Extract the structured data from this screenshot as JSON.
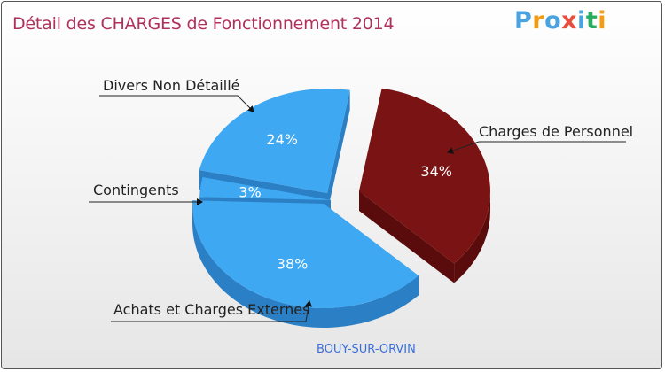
{
  "header": {
    "title": "Détail des CHARGES de Fonctionnement 2014",
    "logo": "Proxiti",
    "commune": "BOUY-SUR-ORVIN"
  },
  "colors": {
    "title": "#b0305c",
    "blue": "#3ea8f2",
    "blue_side": "#2b7fc5",
    "red": "#7a1414",
    "red_side": "#5a0b0b",
    "logo": [
      "#4aa3df",
      "#f39c12",
      "#4aa3df",
      "#e74c3c",
      "#4aa3df",
      "#27ae60",
      "#f39c12"
    ]
  },
  "chart_data": {
    "type": "pie",
    "title": "Détail des CHARGES de Fonctionnement 2014",
    "subtitle": "BOUY-SUR-ORVIN",
    "unit": "%",
    "slices": [
      {
        "label": "Charges de Personnel",
        "value": 34,
        "value_label": "34%"
      },
      {
        "label": "Achats et Charges Externes",
        "value": 38,
        "value_label": "38%"
      },
      {
        "label": "Contingents",
        "value": 3,
        "value_label": "3%"
      },
      {
        "label": "Divers Non Détaillé",
        "value": 24,
        "value_label": "24%"
      }
    ]
  }
}
